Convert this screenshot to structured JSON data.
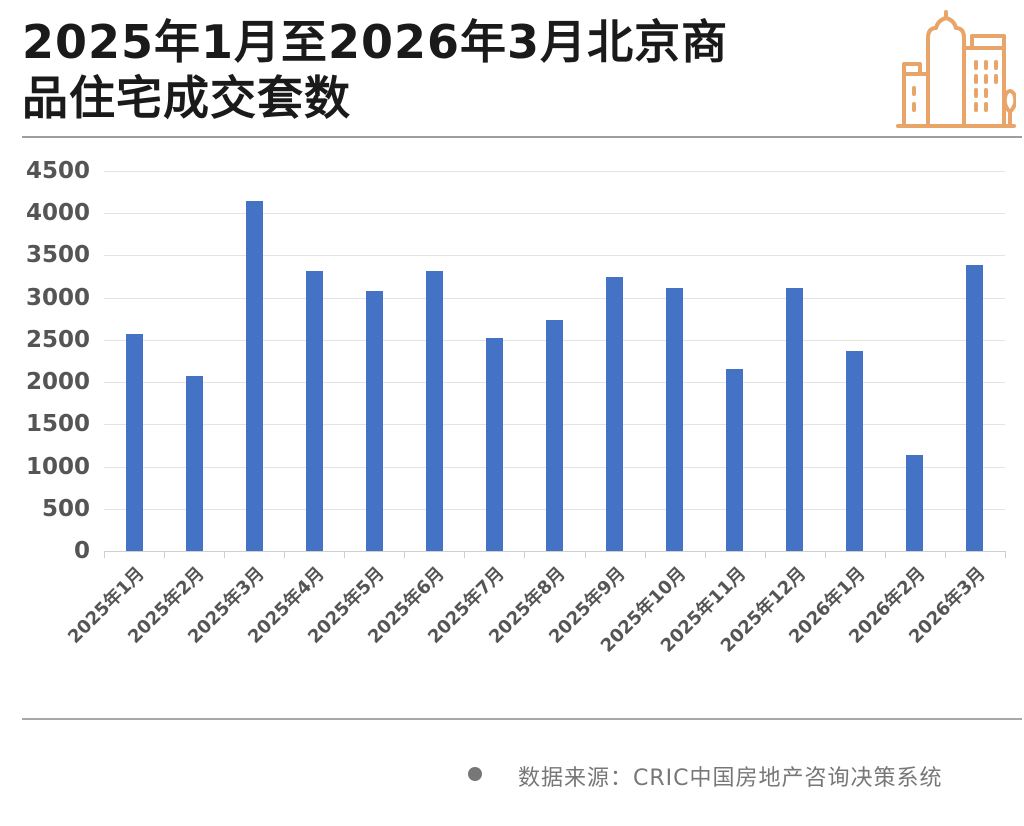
{
  "title": {
    "line1": "2025年1月至2026年3月北京商",
    "line2": "品住宅成交套数",
    "icon": "city-buildings-icon",
    "icon_color": "#e9a46a"
  },
  "footer": {
    "source": "数据来源：CRIC中国房地产咨询决策系统",
    "bullet_icon": "bullet-dot-icon"
  },
  "colors": {
    "bar": "#4472c4",
    "grid": "#e3e3e3",
    "text": "#555555",
    "title": "#1a1a1a"
  },
  "chart_data": {
    "type": "bar",
    "title": "2025年1月至2026年3月北京商品住宅成交套数",
    "xlabel": "",
    "ylabel": "",
    "categories": [
      "2025年1月",
      "2025年2月",
      "2025年3月",
      "2025年4月",
      "2025年5月",
      "2025年6月",
      "2025年7月",
      "2025年8月",
      "2025年9月",
      "2025年10月",
      "2025年11月",
      "2025年12月",
      "2026年1月",
      "2026年2月",
      "2026年3月"
    ],
    "values": [
      2570,
      2076,
      4140,
      3320,
      3083,
      3316,
      2519,
      2740,
      3245,
      3115,
      2159,
      3115,
      2369,
      1133,
      3392
    ],
    "ylim": [
      0,
      4500
    ],
    "yticks": [
      0,
      500,
      1000,
      1500,
      2000,
      2500,
      3000,
      3500,
      4000,
      4500
    ],
    "ytick_labels": [
      "0",
      "500",
      "1000",
      "1500",
      "2000",
      "2500",
      "3000",
      "3500",
      "4000",
      "4500"
    ],
    "grid": true,
    "legend": "none",
    "source": "数据来源：CRIC中国房地产咨询决策系统"
  }
}
